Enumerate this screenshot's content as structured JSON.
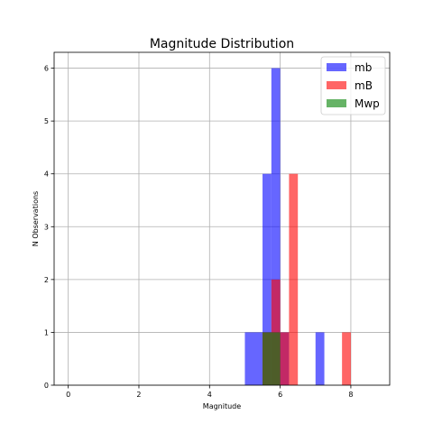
{
  "chart_data": {
    "type": "bar",
    "title": "Magnitude Distribution",
    "xlabel": "Magnitude",
    "ylabel": "N Observations",
    "xlim": [
      -0.4,
      9.1
    ],
    "ylim": [
      0,
      6.3
    ],
    "xticks": [
      0,
      2,
      4,
      6,
      8
    ],
    "yticks": [
      0,
      1,
      2,
      3,
      4,
      5,
      6
    ],
    "grid": true,
    "legend_position": "top-right",
    "series": [
      {
        "name": "mb",
        "color": "#0000ff",
        "opacity": 0.6,
        "bins": [
          {
            "x0": 5.0,
            "x1": 5.5,
            "count": 1
          },
          {
            "x0": 5.5,
            "x1": 5.75,
            "count": 4
          },
          {
            "x0": 5.75,
            "x1": 6.0,
            "count": 6
          },
          {
            "x0": 6.0,
            "x1": 6.25,
            "count": 1
          },
          {
            "x0": 7.0,
            "x1": 7.25,
            "count": 1
          }
        ]
      },
      {
        "name": "mB",
        "color": "#ff0000",
        "opacity": 0.6,
        "bins": [
          {
            "x0": 5.5,
            "x1": 5.75,
            "count": 1
          },
          {
            "x0": 5.75,
            "x1": 6.0,
            "count": 2
          },
          {
            "x0": 6.0,
            "x1": 6.25,
            "count": 1
          },
          {
            "x0": 6.25,
            "x1": 6.5,
            "count": 4
          },
          {
            "x0": 7.75,
            "x1": 8.0,
            "count": 1
          }
        ]
      },
      {
        "name": "Mwp",
        "color": "#008000",
        "opacity": 0.6,
        "bins": [
          {
            "x0": 5.5,
            "x1": 6.0,
            "count": 1
          }
        ]
      }
    ]
  }
}
